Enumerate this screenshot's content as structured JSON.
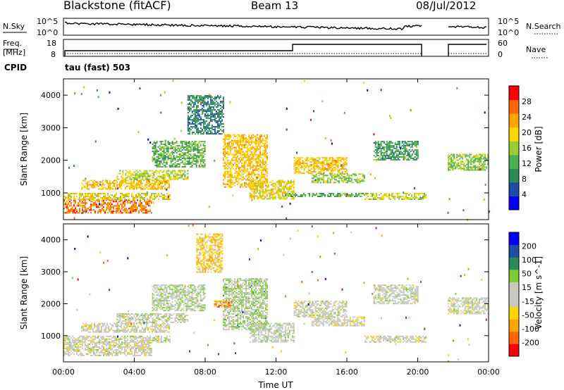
{
  "header": {
    "title": "Blackstone (fitACF)",
    "beam": "Beam 13",
    "date": "08/Jul/2012"
  },
  "top_panel": {
    "left_label": "N.Sky",
    "right_label": "N.Search",
    "left_ticks": [
      "10^5",
      "10^0"
    ],
    "right_ticks": [
      "10^5",
      "10^0"
    ]
  },
  "freq_panel": {
    "left_label": "Freq.",
    "left_unit": "[MHz]",
    "right_label": "Nave",
    "left_ticks": [
      "18",
      "8"
    ],
    "right_ticks": [
      "60",
      "0"
    ]
  },
  "cpid": {
    "label": "CPID",
    "text": "tau (fast) 503"
  },
  "colors": {
    "power": [
      "#0000ff",
      "#1f4ea8",
      "#2e8b57",
      "#4caf50",
      "#9acd32",
      "#ffd700",
      "#ffa500",
      "#ff6600",
      "#ff0000"
    ],
    "velocity": [
      "#ff0000",
      "#ff6600",
      "#ffa500",
      "#ffd700",
      "#c8c8c0",
      "#c8c8c0",
      "#7ccd32",
      "#2e8b57",
      "#1f4ea8",
      "#0000ff"
    ]
  },
  "chart_data": [
    {
      "type": "heatmap",
      "name": "power",
      "ylabel": "Slant Range [km]",
      "yticks": [
        "1000",
        "2000",
        "3000",
        "4000"
      ],
      "ylim": [
        180,
        4500
      ],
      "colorbar": {
        "label": "Power [dB]",
        "ticks": [
          "4",
          "8",
          "12",
          "16",
          "20",
          "24",
          "28"
        ],
        "range": [
          0,
          30
        ]
      },
      "bands": [
        {
          "x": [
            0.0,
            5.0
          ],
          "y": [
            400,
            800
          ],
          "value": 24
        },
        {
          "x": [
            0.0,
            6.0
          ],
          "y": [
            800,
            1000
          ],
          "value": 18
        },
        {
          "x": [
            1.0,
            6.0
          ],
          "y": [
            1100,
            1400
          ],
          "value": 20
        },
        {
          "x": [
            3.0,
            7.0
          ],
          "y": [
            1400,
            1700
          ],
          "value": 16
        },
        {
          "x": [
            5.0,
            8.0
          ],
          "y": [
            1800,
            2600
          ],
          "value": 12
        },
        {
          "x": [
            7.0,
            9.0
          ],
          "y": [
            2800,
            4000
          ],
          "value": 8
        },
        {
          "x": [
            9.0,
            11.5
          ],
          "y": [
            1200,
            2800
          ],
          "value": 20
        },
        {
          "x": [
            10.5,
            13.0
          ],
          "y": [
            800,
            1400
          ],
          "value": 18
        },
        {
          "x": [
            13.0,
            16.0
          ],
          "y": [
            1600,
            2100
          ],
          "value": 20
        },
        {
          "x": [
            14.0,
            17.0
          ],
          "y": [
            1300,
            1600
          ],
          "value": 14
        },
        {
          "x": [
            12.5,
            17.0
          ],
          "y": [
            900,
            1000
          ],
          "value": 12
        },
        {
          "x": [
            17.0,
            20.5
          ],
          "y": [
            800,
            1000
          ],
          "value": 16
        },
        {
          "x": [
            17.5,
            20.0
          ],
          "y": [
            2000,
            2600
          ],
          "value": 10
        },
        {
          "x": [
            21.7,
            24.0
          ],
          "y": [
            1700,
            2200
          ],
          "value": 14
        }
      ]
    },
    {
      "type": "heatmap",
      "name": "velocity",
      "ylabel": "Slant Range [km]",
      "xlabel": "Time UT",
      "xticks": [
        "00:00",
        "04:00",
        "08:00",
        "12:00",
        "16:00",
        "20:00",
        "00:00"
      ],
      "xlim": [
        0,
        24
      ],
      "yticks": [
        "1000",
        "2000",
        "3000",
        "4000"
      ],
      "ylim": [
        180,
        4500
      ],
      "colorbar": {
        "label": "Velocity [m s^-1]",
        "ticks": [
          "-200",
          "-100",
          "-50",
          "-15",
          "15",
          "50",
          "100",
          "200"
        ],
        "range": [
          -250,
          250
        ]
      },
      "bands": [
        {
          "x": [
            0.0,
            5.0
          ],
          "y": [
            400,
            800
          ],
          "value": -5
        },
        {
          "x": [
            0.0,
            6.0
          ],
          "y": [
            800,
            1000
          ],
          "value": 0
        },
        {
          "x": [
            1.0,
            6.0
          ],
          "y": [
            1100,
            1400
          ],
          "value": -5
        },
        {
          "x": [
            3.0,
            7.0
          ],
          "y": [
            1400,
            1700
          ],
          "value": 5
        },
        {
          "x": [
            5.0,
            8.0
          ],
          "y": [
            1800,
            2600
          ],
          "value": 30
        },
        {
          "x": [
            7.5,
            9.0
          ],
          "y": [
            3000,
            4200
          ],
          "value": -80
        },
        {
          "x": [
            9.0,
            11.5
          ],
          "y": [
            1200,
            2800
          ],
          "value": 40
        },
        {
          "x": [
            8.5,
            9.5
          ],
          "y": [
            1900,
            2100
          ],
          "value": -150
        },
        {
          "x": [
            10.5,
            13.0
          ],
          "y": [
            800,
            1400
          ],
          "value": 10
        },
        {
          "x": [
            13.0,
            16.0
          ],
          "y": [
            1600,
            2100
          ],
          "value": 0
        },
        {
          "x": [
            14.0,
            17.0
          ],
          "y": [
            1300,
            1600
          ],
          "value": -5
        },
        {
          "x": [
            17.0,
            20.5
          ],
          "y": [
            800,
            1000
          ],
          "value": 0
        },
        {
          "x": [
            17.5,
            20.0
          ],
          "y": [
            2000,
            2600
          ],
          "value": 5
        },
        {
          "x": [
            21.7,
            24.0
          ],
          "y": [
            1700,
            2200
          ],
          "value": 0
        }
      ]
    }
  ]
}
